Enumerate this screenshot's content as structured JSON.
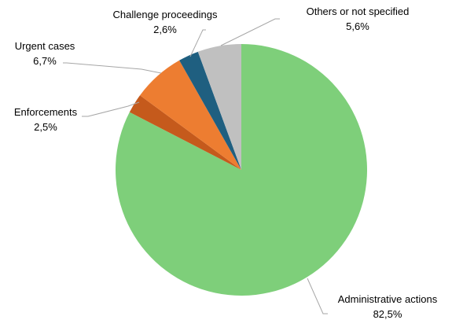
{
  "chart_data": {
    "type": "pie",
    "title": "",
    "start_angle_deg": 0,
    "direction": "clockwise",
    "slices": [
      {
        "label": "Administrative actions",
        "value_text": "82,5%",
        "value": 82.5,
        "color": "#7ecf7a"
      },
      {
        "label": "Enforcements",
        "value_text": "2,5%",
        "value": 2.5,
        "color": "#c55a1c"
      },
      {
        "label": "Urgent cases",
        "value_text": "6,7%",
        "value": 6.7,
        "color": "#ed7d31"
      },
      {
        "label": "Challenge proceedings",
        "value_text": "2,6%",
        "value": 2.6,
        "color": "#1f5f80"
      },
      {
        "label": "Others or not specified",
        "value_text": "5,6%",
        "value": 5.6,
        "color": "#c0c0c0"
      }
    ],
    "legend": "none",
    "data_labels": "category name and percentage, outside with leader lines"
  }
}
